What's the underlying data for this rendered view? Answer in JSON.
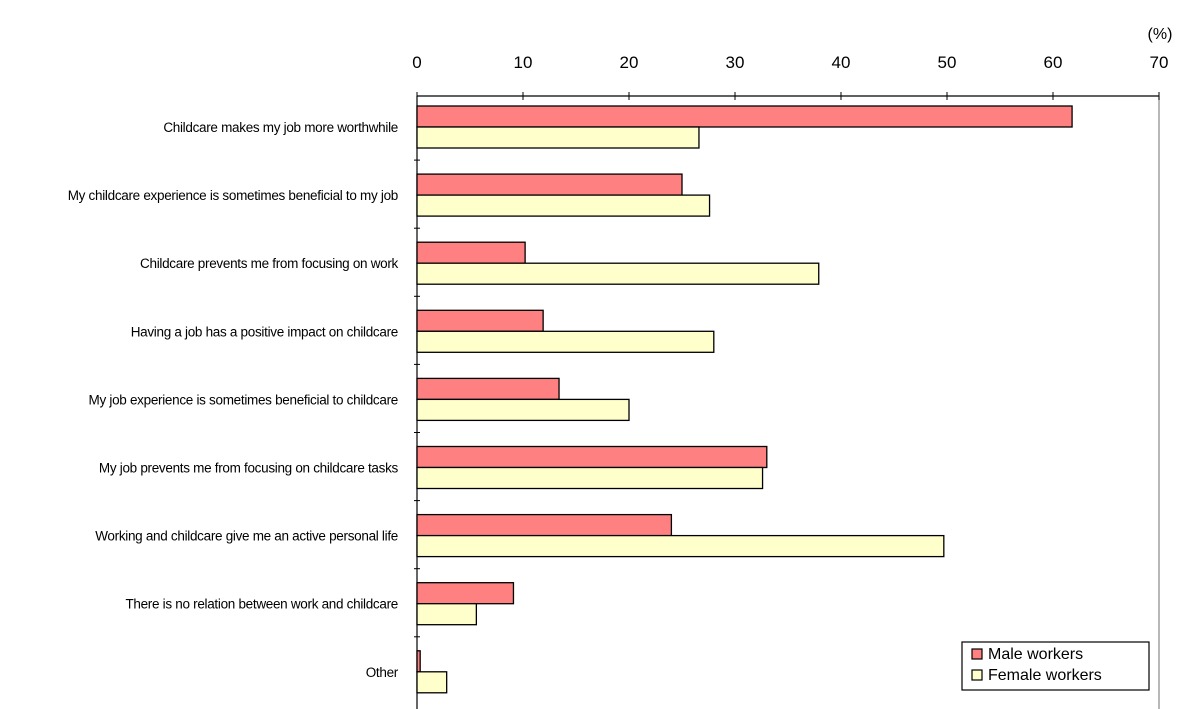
{
  "chart_data": {
    "type": "bar",
    "orientation": "horizontal",
    "unit_label": "(%)",
    "xlim": [
      0,
      70
    ],
    "x_ticks": [
      0,
      10,
      20,
      30,
      40,
      50,
      60,
      70
    ],
    "categories": [
      "Childcare makes my job more worthwhile",
      "My childcare experience is sometimes beneficial to my job",
      "Childcare prevents me from focusing on work",
      "Having a job has a positive impact on childcare",
      "My job experience is sometimes beneficial to childcare",
      "My job prevents me from focusing on childcare tasks",
      "Working and childcare give me an active personal life",
      "There is no relation between work and childcare",
      "Other"
    ],
    "series": [
      {
        "name": "Male workers",
        "color": "#ff8080",
        "values": [
          61.8,
          25.0,
          10.2,
          11.9,
          13.4,
          33.0,
          24.0,
          9.1,
          0.3
        ]
      },
      {
        "name": "Female workers",
        "color": "#ffffcc",
        "values": [
          26.6,
          27.6,
          37.9,
          28.0,
          20.0,
          32.6,
          49.7,
          5.6,
          2.8
        ]
      }
    ],
    "legend_position": "bottom-right",
    "grid": false
  }
}
